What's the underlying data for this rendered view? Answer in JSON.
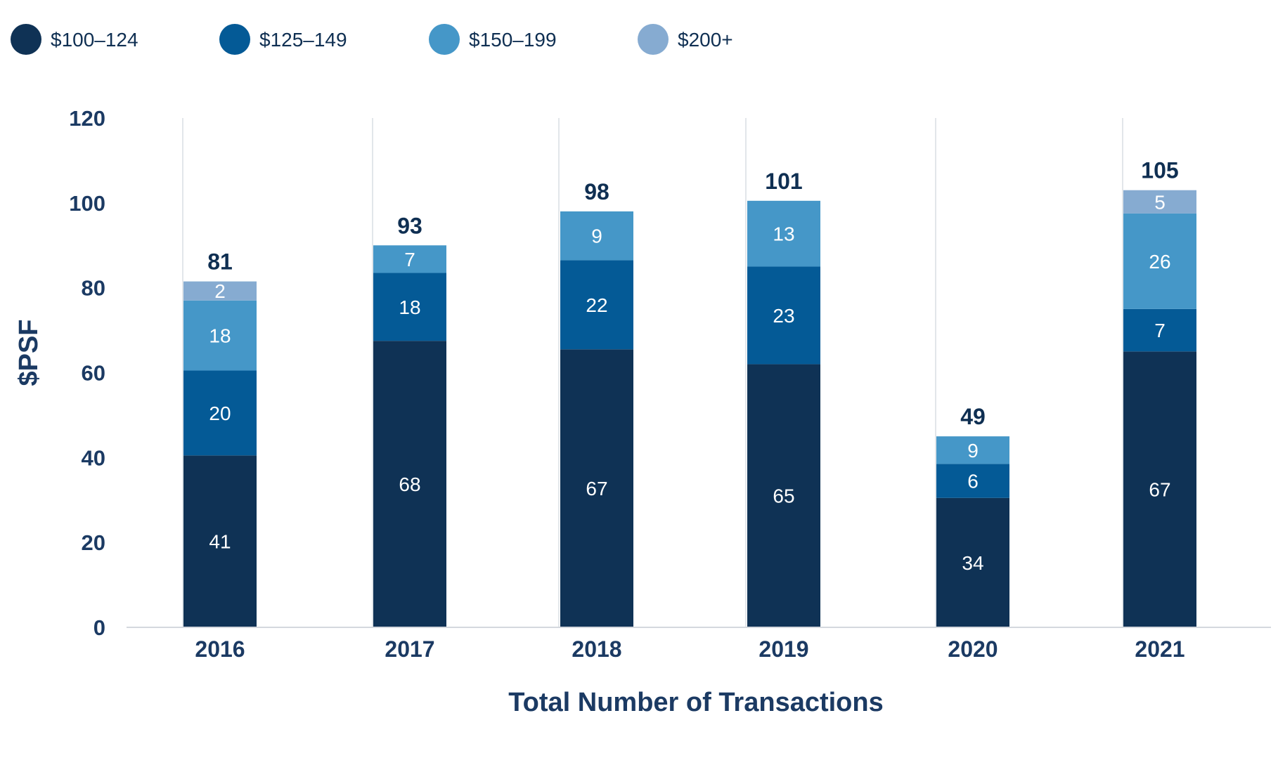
{
  "chart_data": {
    "type": "bar",
    "stacked": true,
    "title": "",
    "xlabel": "Total Number of Transactions",
    "ylabel": "$PSF",
    "ylim": [
      0,
      120
    ],
    "yticks": [
      0,
      20,
      40,
      60,
      80,
      100,
      120
    ],
    "categories": [
      "2016",
      "2017",
      "2018",
      "2019",
      "2020",
      "2021"
    ],
    "series": [
      {
        "name": "$100–124",
        "color": "#0f3255",
        "values": [
          41,
          68,
          67,
          65,
          34,
          67
        ]
      },
      {
        "name": "$125–149",
        "color": "#045a96",
        "values": [
          20,
          18,
          22,
          23,
          6,
          7
        ]
      },
      {
        "name": "$150–199",
        "color": "#4597c8",
        "values": [
          18,
          7,
          9,
          13,
          9,
          26
        ]
      },
      {
        "name": "$200+",
        "color": "#86abd1",
        "values": [
          2,
          null,
          null,
          null,
          null,
          5
        ]
      }
    ],
    "segment_heights": [
      [
        40.5,
        67.5,
        65.5,
        62,
        30.5,
        65
      ],
      [
        20,
        16,
        21,
        23,
        8,
        10
      ],
      [
        16.5,
        6.5,
        11.5,
        15.5,
        6.5,
        22.5
      ],
      [
        4.5,
        0,
        0,
        0,
        0,
        5.5
      ]
    ],
    "totals": [
      81,
      93,
      98,
      101,
      49,
      105
    ],
    "legend_position": "top-left",
    "gridlines": "vertical"
  }
}
